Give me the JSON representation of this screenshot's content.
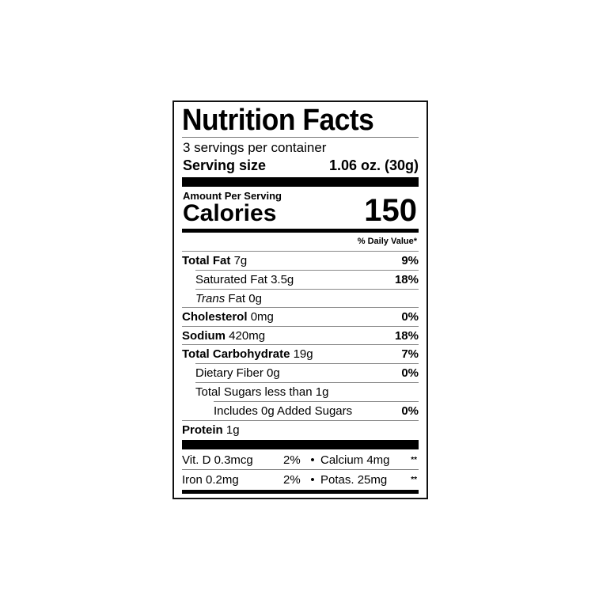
{
  "title": "Nutrition Facts",
  "servings_per_container": "3 servings per container",
  "serving_size": {
    "label": "Serving size",
    "value": "1.06 oz. (30g)"
  },
  "amount_per_serving": "Amount Per Serving",
  "calories": {
    "label": "Calories",
    "value": "150"
  },
  "daily_value_header": "% Daily Value*",
  "nutrients": [
    {
      "name": "Total Fat",
      "amount": "7g",
      "dv": "9%"
    },
    {
      "name": "Saturated Fat",
      "amount": "3.5g",
      "dv": "18%"
    },
    {
      "name": "Trans",
      "name2": "Fat",
      "amount": "0g",
      "dv": ""
    },
    {
      "name": "Cholesterol",
      "amount": "0mg",
      "dv": "0%"
    },
    {
      "name": "Sodium",
      "amount": "420mg",
      "dv": "18%"
    },
    {
      "name": "Total Carbohydrate",
      "amount": "19g",
      "dv": "7%"
    },
    {
      "name": "Dietary Fiber",
      "amount": "0g",
      "dv": "0%"
    },
    {
      "name": "Total Sugars less than",
      "amount": "1g",
      "dv": ""
    },
    {
      "name": "Includes 0g Added Sugars",
      "amount": "",
      "dv": "0%"
    },
    {
      "name": "Protein",
      "amount": "1g",
      "dv": ""
    }
  ],
  "vitamins": [
    {
      "left": "Vit. D 0.3mcg",
      "left_dv": "2%",
      "bullet": "•",
      "right": "Calcium 4mg",
      "right_dv": "**"
    },
    {
      "left": "Iron 0.2mg",
      "left_dv": "2%",
      "bullet": "•",
      "right": "Potas. 25mg",
      "right_dv": "**"
    }
  ]
}
